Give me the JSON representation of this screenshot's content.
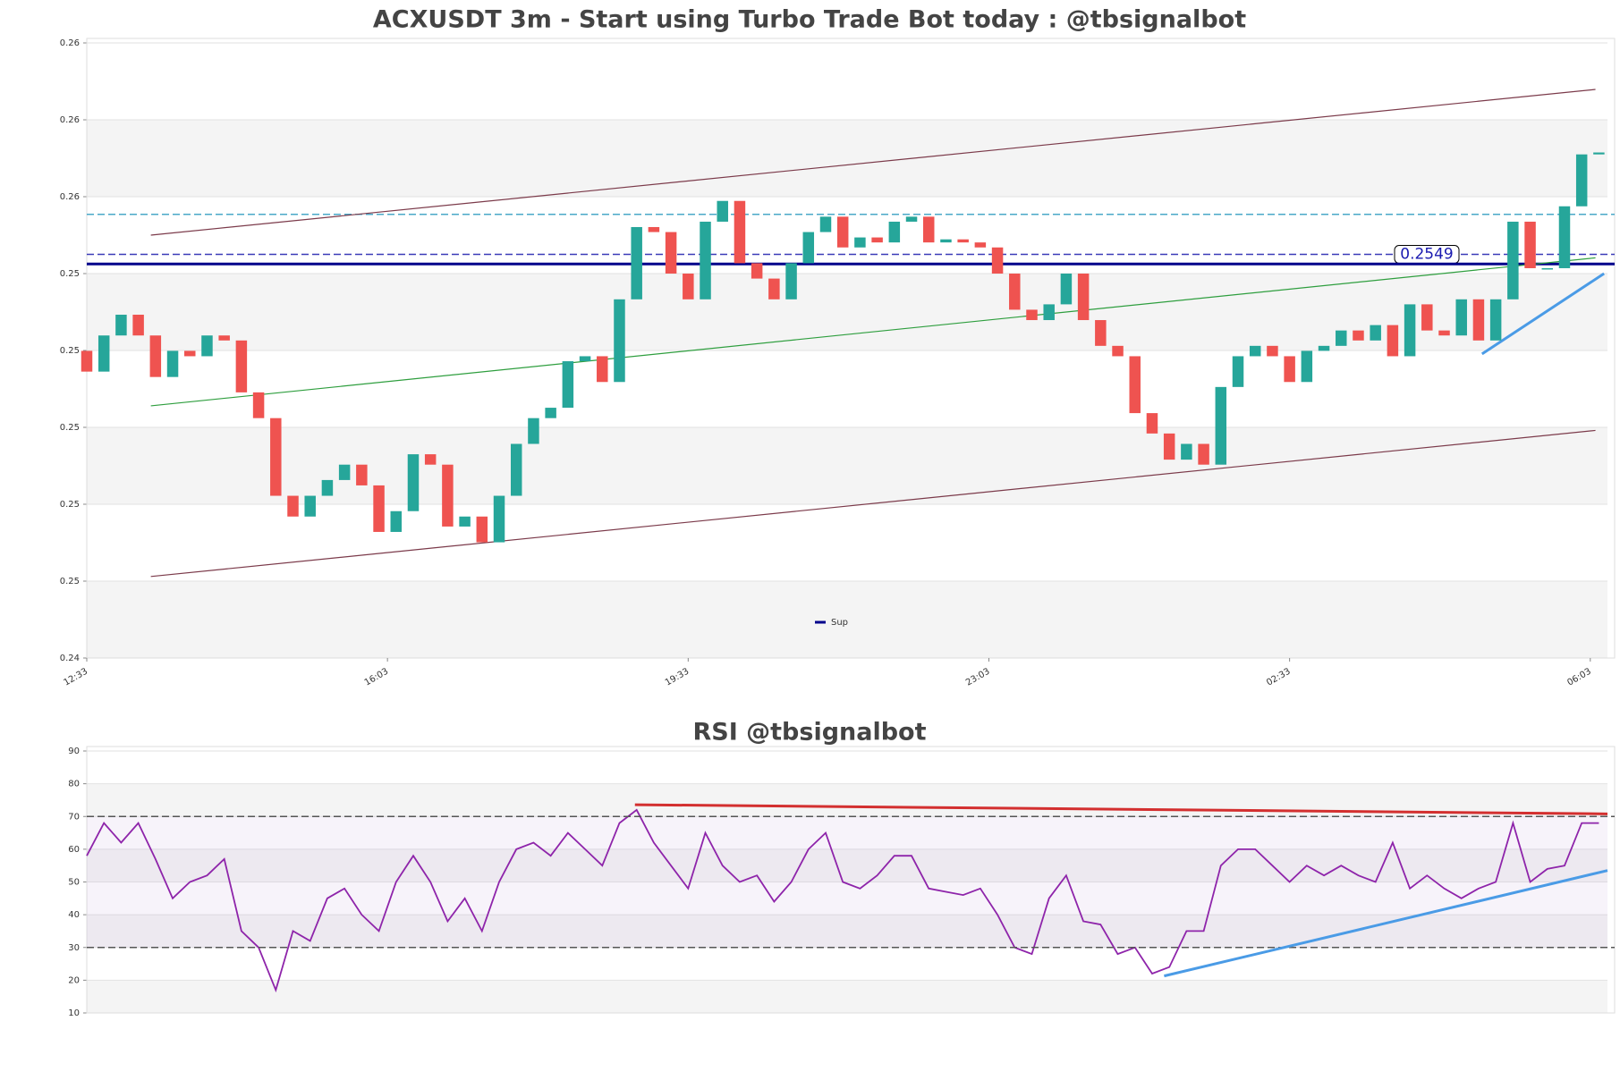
{
  "chart_data": [
    {
      "type": "candlestick",
      "title": "ACXUSDT 3m - Start using Turbo Trade Bot today : @tbsignalbot",
      "up_color": "#26a69a",
      "down_color": "#ef5350",
      "open": [
        0.25239,
        0.25185,
        0.25279,
        0.25333,
        0.25279,
        0.25171,
        0.25239,
        0.25225,
        0.25279,
        0.25266,
        0.25131,
        0.25064,
        0.24862,
        0.24808,
        0.24862,
        0.24903,
        0.24943,
        0.24889,
        0.24768,
        0.24822,
        0.2497,
        0.24943,
        0.24782,
        0.24808,
        0.24741,
        0.24862,
        0.24997,
        0.25064,
        0.25091,
        0.25212,
        0.25225,
        0.25158,
        0.25373,
        0.25561,
        0.25548,
        0.2544,
        0.25373,
        0.25575,
        0.25629,
        0.25467,
        0.25427,
        0.25373,
        0.25467,
        0.25548,
        0.25588,
        0.25508,
        0.25534,
        0.25521,
        0.25575,
        0.25588,
        0.25521,
        0.25529,
        0.25521,
        0.25508,
        0.2544,
        0.25346,
        0.25319,
        0.2536,
        0.2544,
        0.25319,
        0.25252,
        0.25225,
        0.25077,
        0.25024,
        0.24956,
        0.24997,
        0.24943,
        0.25145,
        0.25225,
        0.25252,
        0.25225,
        0.25158,
        0.25239,
        0.25252,
        0.25292,
        0.25266,
        0.25306,
        0.25225,
        0.2536,
        0.25292,
        0.25279,
        0.25373,
        0.25266,
        0.25373,
        0.25575,
        0.25454,
        0.25454,
        0.25615,
        0.2575
      ],
      "close": [
        0.25185,
        0.25279,
        0.25333,
        0.25279,
        0.25171,
        0.25239,
        0.25225,
        0.25279,
        0.25266,
        0.25131,
        0.25064,
        0.24862,
        0.24808,
        0.24862,
        0.24903,
        0.24943,
        0.24889,
        0.24768,
        0.24822,
        0.2497,
        0.24943,
        0.24782,
        0.24808,
        0.24741,
        0.24862,
        0.24997,
        0.25064,
        0.25091,
        0.25212,
        0.25225,
        0.25158,
        0.25373,
        0.25561,
        0.25548,
        0.2544,
        0.25373,
        0.25575,
        0.25629,
        0.25467,
        0.25427,
        0.25373,
        0.25467,
        0.25548,
        0.25588,
        0.25508,
        0.25534,
        0.25521,
        0.25575,
        0.25588,
        0.25521,
        0.25529,
        0.25521,
        0.25508,
        0.2544,
        0.25346,
        0.25319,
        0.2536,
        0.2544,
        0.25319,
        0.25252,
        0.25225,
        0.25077,
        0.25024,
        0.24956,
        0.24997,
        0.24943,
        0.25145,
        0.25225,
        0.25252,
        0.25225,
        0.25158,
        0.25239,
        0.25252,
        0.25292,
        0.25266,
        0.25306,
        0.25225,
        0.2536,
        0.25292,
        0.25279,
        0.25373,
        0.25266,
        0.25373,
        0.25575,
        0.25454,
        0.25454,
        0.25615,
        0.2575,
        0.25755
      ],
      "xlim": [
        0,
        88.5
      ],
      "xticks": [
        {
          "value": 0,
          "label": "12:33"
        },
        {
          "value": 17.5,
          "label": "16:03"
        },
        {
          "value": 35,
          "label": "19:33"
        },
        {
          "value": 52.5,
          "label": "23:03"
        },
        {
          "value": 70,
          "label": "02:33"
        },
        {
          "value": 87.5,
          "label": "06:03"
        }
      ],
      "ylim": [
        0.2444,
        0.2604
      ],
      "yticks": [
        {
          "value": 0.2444,
          "label": "0.24"
        },
        {
          "value": 0.2464,
          "label": "0.25"
        },
        {
          "value": 0.2484,
          "label": "0.25"
        },
        {
          "value": 0.2504,
          "label": "0.25"
        },
        {
          "value": 0.2524,
          "label": "0.25"
        },
        {
          "value": 0.2544,
          "label": "0.25"
        },
        {
          "value": 0.2564,
          "label": "0.26"
        },
        {
          "value": 0.2584,
          "label": "0.26"
        },
        {
          "value": 0.2604,
          "label": "0.26"
        }
      ],
      "hlines": [
        {
          "value": 0.25594,
          "color": "#4aa8c8",
          "dashed": true
        },
        {
          "value": 0.2549,
          "color": "#3a3ab8",
          "dashed": true,
          "labeled": true
        },
        {
          "name": "Sup",
          "value": 0.25465,
          "color": "#00008b",
          "dashed": false
        }
      ],
      "lines": [
        {
          "x": [
            3.73,
            87.8
          ],
          "y": [
            0.2554,
            0.25919
          ],
          "color": "#7b3a4a"
        },
        {
          "x": [
            3.73,
            87.8
          ],
          "y": [
            0.24652,
            0.25032
          ],
          "color": "#7b3a4a"
        },
        {
          "x": [
            3.73,
            87.8
          ],
          "y": [
            0.25096,
            0.25481
          ],
          "color": "#2e9e3e"
        },
        {
          "x": [
            81.2,
            88.3
          ],
          "y": [
            0.25231,
            0.2544
          ],
          "color": "#4a9be6"
        }
      ]
    },
    {
      "type": "line",
      "title": "RSI @tbsignalbot",
      "color": "#8e24aa",
      "values": [
        58,
        68,
        62,
        68,
        57,
        45,
        50,
        52,
        57,
        35,
        30,
        17,
        35,
        32,
        45,
        48,
        40,
        35,
        50,
        58,
        50,
        38,
        45,
        35,
        50,
        60,
        62,
        58,
        65,
        60,
        55,
        68,
        72,
        62,
        55,
        48,
        65,
        55,
        50,
        52,
        44,
        50,
        60,
        65,
        50,
        48,
        52,
        58,
        58,
        48,
        47,
        46,
        48,
        40,
        30,
        28,
        45,
        52,
        38,
        37,
        28,
        30,
        22,
        24,
        35,
        35,
        55,
        60,
        60,
        55,
        50,
        55,
        52,
        55,
        52,
        50,
        62,
        48,
        52,
        48,
        45,
        48,
        50,
        68,
        50,
        54,
        55,
        68,
        68
      ],
      "xlim": [
        0,
        88.5
      ],
      "ylim": [
        10,
        90
      ],
      "yticks": [
        10,
        20,
        30,
        40,
        50,
        60,
        70,
        80,
        90
      ],
      "hlines": [
        {
          "value": 30,
          "color": "#555555",
          "dashed": true
        },
        {
          "value": 70,
          "color": "#555555",
          "dashed": true
        }
      ],
      "lines": [
        {
          "x": [
            31.9,
            88.5
          ],
          "y": [
            73.6,
            70.8
          ],
          "color": "#d32f2f"
        },
        {
          "x": [
            62.7,
            88.5
          ],
          "y": [
            21.3,
            53.5
          ],
          "color": "#4a9be6"
        }
      ]
    }
  ]
}
